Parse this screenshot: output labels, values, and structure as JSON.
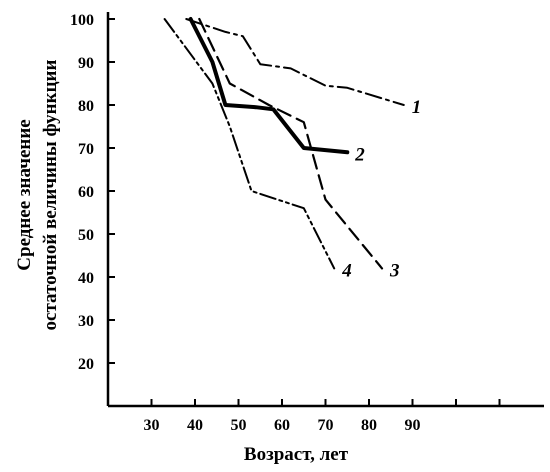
{
  "chart_data": {
    "type": "line",
    "xlabel": "Возраст, лет",
    "ylabel_line1": "Среднее значение",
    "ylabel_line2": "остаточной величины функции",
    "xlim": [
      20,
      100
    ],
    "ylim": [
      10,
      100
    ],
    "x_ticks": [
      30,
      40,
      50,
      60,
      70,
      80,
      90
    ],
    "y_ticks": [
      20,
      30,
      40,
      50,
      60,
      70,
      80,
      90,
      100
    ],
    "grid": false,
    "legend": "none",
    "series": [
      {
        "name": "1",
        "style": "dash-dot",
        "width": 2,
        "points": [
          [
            38,
            100
          ],
          [
            47,
            97
          ],
          [
            51,
            96
          ],
          [
            55,
            89.5
          ],
          [
            62,
            88.5
          ],
          [
            70,
            84.5
          ],
          [
            75,
            84
          ],
          [
            88,
            80
          ]
        ]
      },
      {
        "name": "2",
        "style": "solid",
        "width": 4,
        "points": [
          [
            39,
            100
          ],
          [
            44,
            90
          ],
          [
            47,
            80
          ],
          [
            54,
            79.5
          ],
          [
            58,
            79
          ],
          [
            65,
            70
          ],
          [
            75,
            69
          ]
        ]
      },
      {
        "name": "3",
        "style": "dashed",
        "width": 2.2,
        "points": [
          [
            41,
            100
          ],
          [
            48,
            85
          ],
          [
            57,
            80
          ],
          [
            65,
            76
          ],
          [
            70,
            58
          ],
          [
            83,
            42
          ]
        ]
      },
      {
        "name": "4",
        "style": "dash-dot-dot",
        "width": 2,
        "points": [
          [
            33,
            100
          ],
          [
            44,
            85
          ],
          [
            48,
            75
          ],
          [
            53,
            60
          ],
          [
            65,
            56
          ],
          [
            72,
            42
          ]
        ]
      }
    ]
  }
}
